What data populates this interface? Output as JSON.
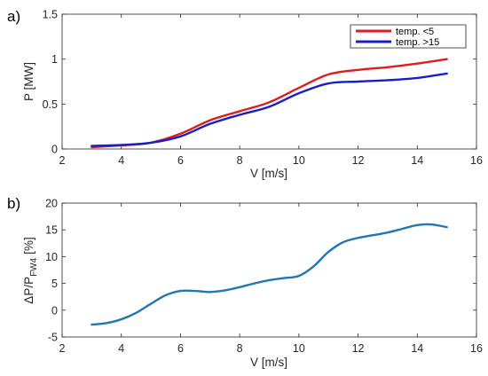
{
  "chart_data": [
    {
      "panel_label": "a)",
      "type": "line",
      "xlabel": "V [m/s]",
      "ylabel": "P [MW]",
      "xlim": [
        2,
        16
      ],
      "ylim": [
        0,
        1.5
      ],
      "xticks": [
        2,
        4,
        6,
        8,
        10,
        12,
        14,
        16
      ],
      "yticks": [
        0,
        0.5,
        1,
        1.5
      ],
      "xtick_labels": [
        "2",
        "4",
        "6",
        "8",
        "10",
        "12",
        "14",
        "16"
      ],
      "ytick_labels": [
        "0",
        "0.5",
        "1",
        "1.5"
      ],
      "grid": false,
      "legend_position": "top-right",
      "series": [
        {
          "name": "temp. <5",
          "color": "#e3191e",
          "x": [
            3,
            4,
            5,
            6,
            7,
            8,
            9,
            10,
            11,
            12,
            13,
            14,
            15
          ],
          "y": [
            0.02,
            0.04,
            0.07,
            0.17,
            0.32,
            0.42,
            0.52,
            0.68,
            0.83,
            0.88,
            0.91,
            0.95,
            1.0
          ]
        },
        {
          "name": "temp. >15",
          "color": "#1620c8",
          "x": [
            3,
            4,
            5,
            6,
            7,
            8,
            9,
            10,
            11,
            12,
            13,
            14,
            15
          ],
          "y": [
            0.035,
            0.045,
            0.07,
            0.14,
            0.28,
            0.38,
            0.47,
            0.62,
            0.73,
            0.75,
            0.765,
            0.79,
            0.84
          ]
        }
      ]
    },
    {
      "panel_label": "b)",
      "type": "line",
      "xlabel": "V [m/s]",
      "ylabel_main": "ΔP/P",
      "ylabel_sub": "FW4",
      "ylabel_unit": "[%]",
      "xlim": [
        2,
        16
      ],
      "ylim": [
        -5,
        20
      ],
      "xticks": [
        2,
        4,
        6,
        8,
        10,
        12,
        14,
        16
      ],
      "yticks": [
        -5,
        0,
        5,
        10,
        15,
        20
      ],
      "xtick_labels": [
        "2",
        "4",
        "6",
        "8",
        "10",
        "12",
        "14",
        "16"
      ],
      "ytick_labels": [
        "-5",
        "0",
        "5",
        "10",
        "15",
        "20"
      ],
      "grid": false,
      "series": [
        {
          "color": "#1f77b4",
          "x": [
            3,
            3.5,
            4,
            4.5,
            5,
            5.5,
            6,
            6.5,
            7,
            7.5,
            8,
            8.5,
            9,
            9.5,
            10,
            10.5,
            11,
            11.5,
            12,
            12.5,
            13,
            13.5,
            14,
            14.5,
            15
          ],
          "y": [
            -2.7,
            -2.4,
            -1.7,
            -0.5,
            1.2,
            2.8,
            3.6,
            3.6,
            3.4,
            3.7,
            4.3,
            5.0,
            5.6,
            6.0,
            6.4,
            8.2,
            10.9,
            12.7,
            13.5,
            14.0,
            14.5,
            15.2,
            15.9,
            16.0,
            15.5
          ]
        }
      ]
    }
  ]
}
